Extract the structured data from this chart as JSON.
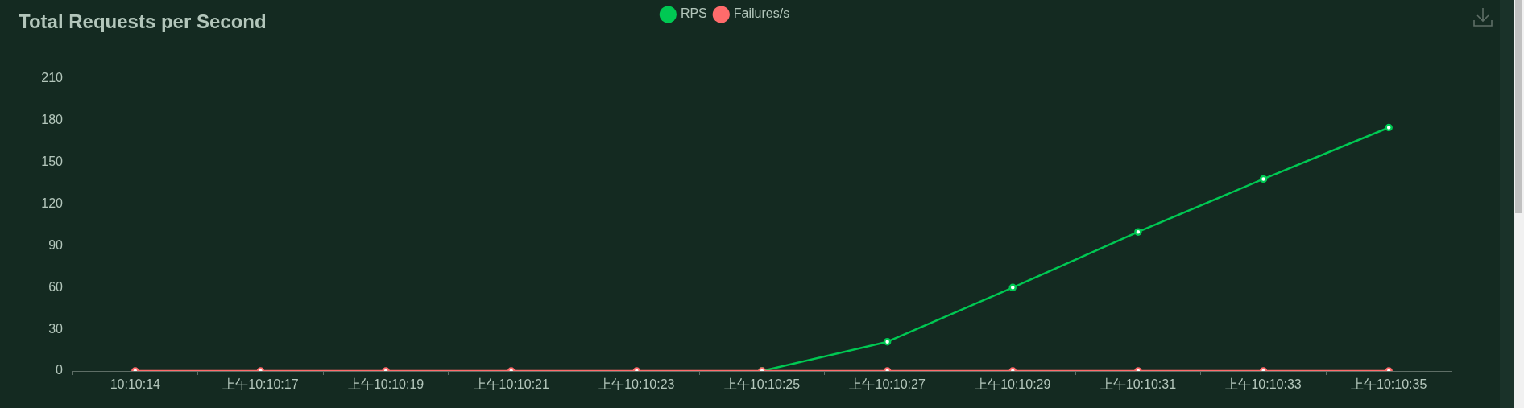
{
  "chart_data": {
    "type": "line",
    "title": "Total Requests per Second",
    "categories": [
      "10:10:14",
      "上午10:10:17",
      "上午10:10:19",
      "上午10:10:21",
      "上午10:10:23",
      "上午10:10:25",
      "上午10:10:27",
      "上午10:10:29",
      "上午10:10:31",
      "上午10:10:33",
      "上午10:10:35"
    ],
    "series": [
      {
        "name": "RPS",
        "color": "#00c853",
        "values": [
          null,
          null,
          null,
          null,
          null,
          0,
          21,
          60,
          100,
          138,
          175
        ]
      },
      {
        "name": "Failures/s",
        "color": "#ff6b6b",
        "values": [
          0,
          0,
          0,
          0,
          0,
          0,
          0,
          0,
          0,
          0,
          0
        ]
      }
    ],
    "ylim": [
      0,
      210
    ],
    "yticks": [
      0,
      30,
      60,
      90,
      120,
      150,
      180,
      210
    ],
    "grid": false,
    "legend": "top",
    "marker": "circle",
    "line_style": "solid"
  }
}
